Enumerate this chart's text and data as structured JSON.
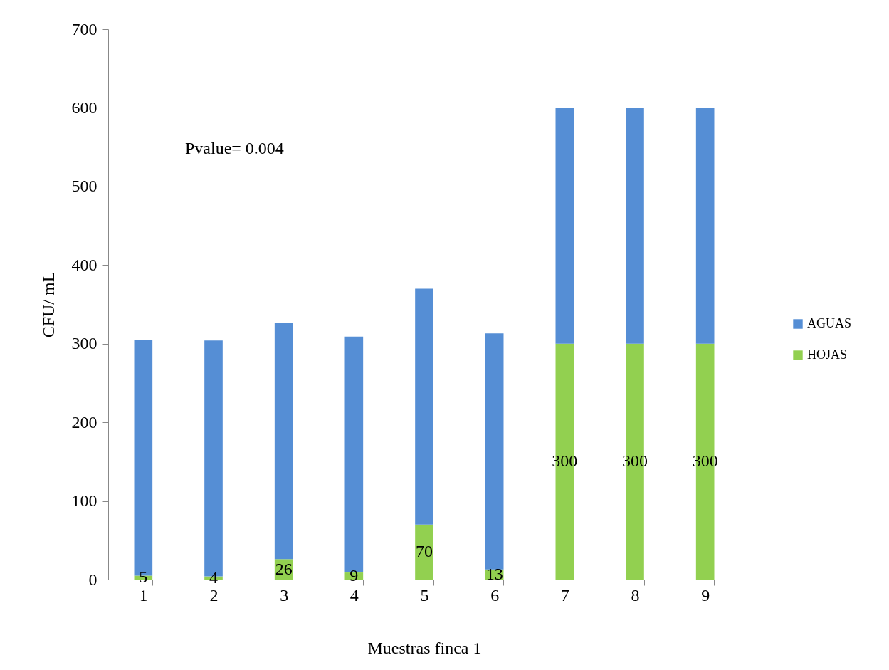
{
  "chart_data": {
    "type": "bar",
    "stacked": true,
    "xlabel": "Muestras finca 1",
    "ylabel": "CFU/ mL",
    "categories": [
      "1",
      "2",
      "3",
      "4",
      "5",
      "6",
      "7",
      "8",
      "9"
    ],
    "series": [
      {
        "name": "HOJAS",
        "color": "#92d050",
        "values": [
          5,
          4,
          26,
          9,
          70,
          13,
          300,
          300,
          300
        ],
        "value_labels": [
          "5",
          "4",
          "26",
          "9",
          "70",
          "13",
          "300",
          "300",
          "300"
        ]
      },
      {
        "name": "AGUAS",
        "color": "#558ed5",
        "values": [
          300,
          300,
          300,
          300,
          300,
          300,
          300,
          300,
          300
        ]
      }
    ],
    "ylim": [
      0,
      700
    ],
    "yticks": [
      0,
      100,
      200,
      300,
      400,
      500,
      600,
      700
    ],
    "grid": false,
    "legend": "right",
    "annotations": [
      "Pvalue= 0.004"
    ]
  }
}
